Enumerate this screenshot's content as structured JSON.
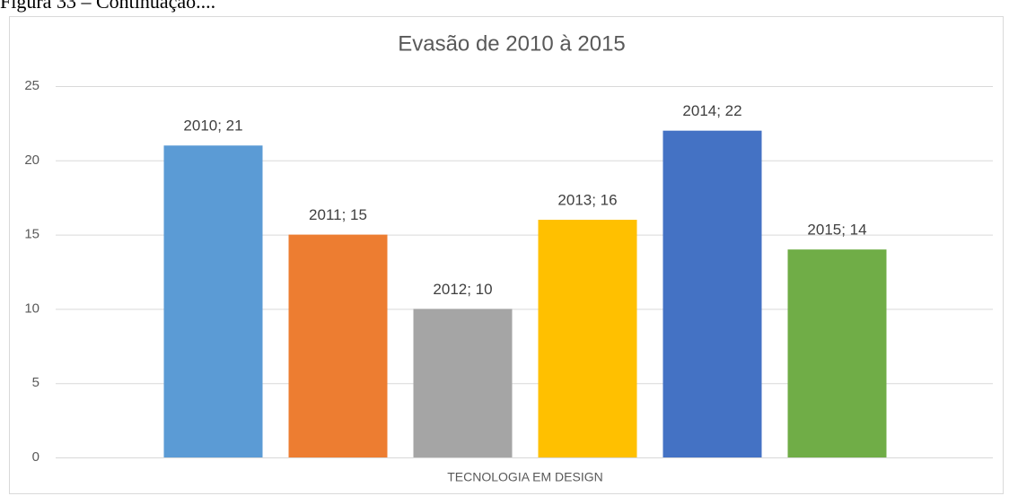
{
  "caption": "Figura 33 – Continuação....",
  "chart_data": {
    "type": "bar",
    "title": "Evasão de 2010 à 2015",
    "categories": [
      "TECNOLOGIA EM DESIGN"
    ],
    "series": [
      {
        "name": "2010",
        "color": "#5b9bd5",
        "values": [
          21
        ],
        "value_labels": [
          "2010; 21"
        ]
      },
      {
        "name": "2011",
        "color": "#ed7d31",
        "values": [
          15
        ],
        "value_labels": [
          "2011; 15"
        ]
      },
      {
        "name": "2012",
        "color": "#a5a5a5",
        "values": [
          10
        ],
        "value_labels": [
          "2012; 10"
        ]
      },
      {
        "name": "2013",
        "color": "#ffc000",
        "values": [
          16
        ],
        "value_labels": [
          "2013; 16"
        ]
      },
      {
        "name": "2014",
        "color": "#4472c4",
        "values": [
          22
        ],
        "value_labels": [
          "2014; 22"
        ]
      },
      {
        "name": "2015",
        "color": "#70ad47",
        "values": [
          14
        ],
        "value_labels": [
          "2015; 14"
        ]
      }
    ],
    "ylim": [
      0,
      25
    ],
    "yticks": [
      0,
      5,
      10,
      15,
      20,
      25
    ],
    "grid": true,
    "legend": false
  }
}
